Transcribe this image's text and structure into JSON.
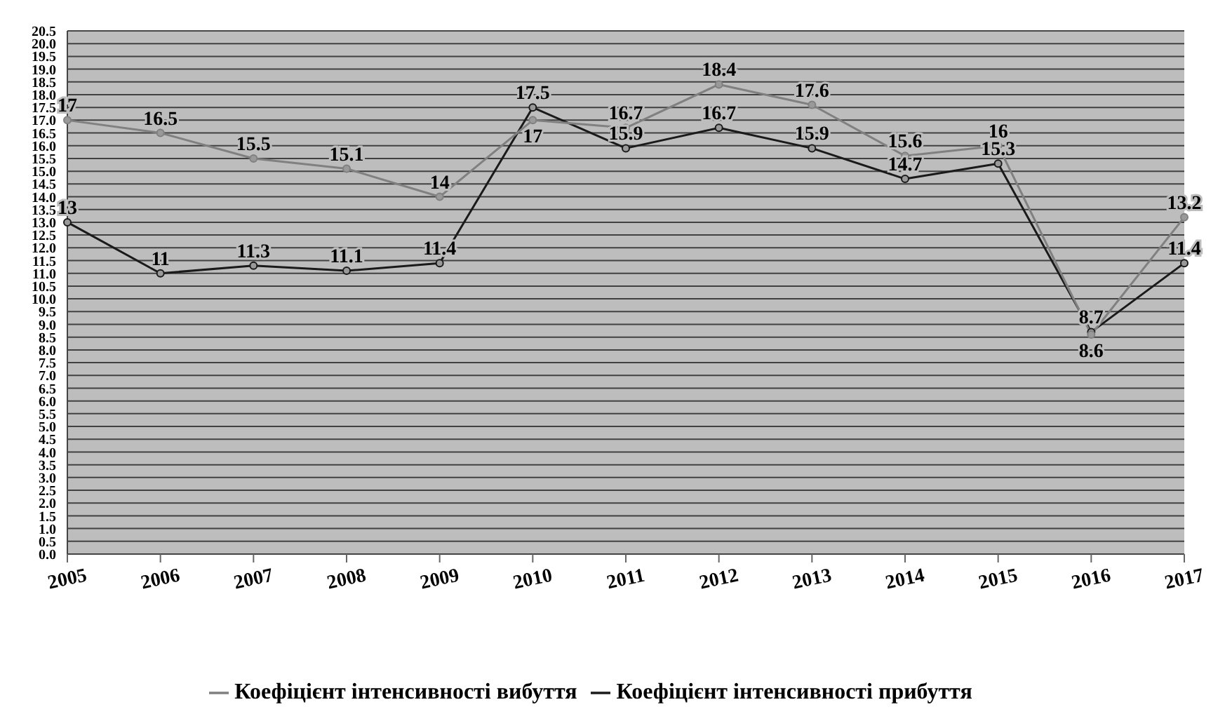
{
  "chart_data": {
    "type": "line",
    "categories": [
      "2005",
      "2006",
      "2007",
      "2008",
      "2009",
      "2010",
      "2011",
      "2012",
      "2013",
      "2014",
      "2015",
      "2016",
      "2017"
    ],
    "series": [
      {
        "name": "Коефіцієнт інтенсивності прибуття",
        "color": "#1a1a1a",
        "values": [
          13,
          11,
          11.3,
          11.1,
          11.4,
          17.5,
          15.9,
          16.7,
          15.9,
          14.7,
          15.3,
          8.7,
          11.4
        ]
      },
      {
        "name": "Коефіцієнт інтенсивності вибуття",
        "color": "#808080",
        "values": [
          17,
          16.5,
          15.5,
          15.1,
          14,
          17,
          16.7,
          18.4,
          17.6,
          15.6,
          16,
          8.6,
          13.2
        ]
      }
    ],
    "ylim": [
      0,
      20.5
    ],
    "yticks": [
      {
        "value": 0,
        "label": "0.0"
      },
      0.5,
      {
        "value": 1,
        "label": "1.0"
      },
      1.5,
      {
        "value": 2,
        "label": "2.0"
      },
      2.5,
      {
        "value": 3,
        "label": "3.0"
      },
      3.5,
      {
        "value": 4,
        "label": "4.0"
      },
      4.5,
      {
        "value": 5,
        "label": "5.0"
      },
      5.5,
      {
        "value": 6,
        "label": "6.0"
      },
      6.5,
      {
        "value": 7,
        "label": "7.0"
      },
      7.5,
      {
        "value": 8,
        "label": "8.0"
      },
      8.5,
      {
        "value": 9,
        "label": "9.0"
      },
      9.5,
      {
        "value": 10,
        "label": "10.0"
      },
      10.5,
      {
        "value": 11,
        "label": "11.0"
      },
      11.5,
      {
        "value": 12,
        "label": "12.0"
      },
      12.5,
      {
        "value": 13,
        "label": "13.0"
      },
      13.5,
      {
        "value": 14,
        "label": "14.0"
      },
      14.5,
      {
        "value": 15,
        "label": "15.0"
      },
      15.5,
      {
        "value": 16,
        "label": "16.0"
      },
      16.5,
      {
        "value": 17,
        "label": "17.0"
      },
      17.5,
      {
        "value": 18,
        "label": "18.0"
      },
      18.5,
      {
        "value": 19,
        "label": "19.0"
      },
      19.5,
      {
        "value": 20,
        "label": "20.0"
      },
      20.5
    ],
    "grid": "y",
    "legend": "bottom",
    "marker": "circle",
    "line_style": "solid",
    "data_labels": true
  }
}
